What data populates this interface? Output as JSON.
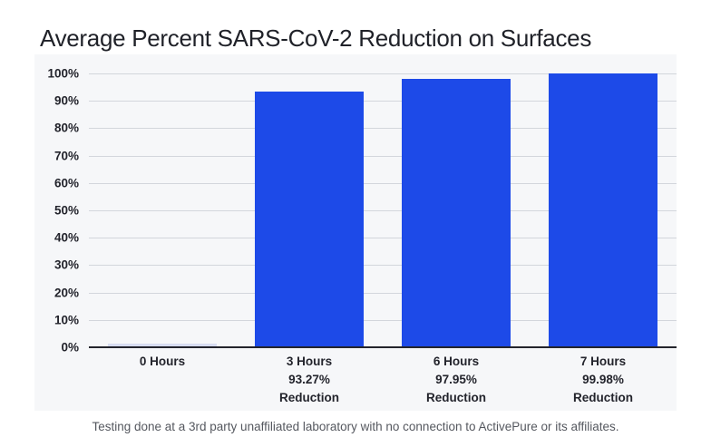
{
  "chart_data": {
    "type": "bar",
    "title": "Average Percent SARS-CoV-2 Reduction on Surfaces",
    "categories": [
      "0 Hours",
      "3 Hours",
      "6 Hours",
      "7 Hours"
    ],
    "category_labels": [
      [
        "0 Hours"
      ],
      [
        "3 Hours",
        "93.27%",
        "Reduction"
      ],
      [
        "6 Hours",
        "97.95%",
        "Reduction"
      ],
      [
        "7 Hours",
        "99.98%",
        "Reduction"
      ]
    ],
    "values": [
      0,
      93.27,
      97.95,
      99.98
    ],
    "xlabel": "",
    "ylabel": "",
    "ylim": [
      0,
      100
    ],
    "grid": "on",
    "legend": "none",
    "yticks": [
      {
        "value": 0,
        "label": "0%"
      },
      {
        "value": 10,
        "label": "10%"
      },
      {
        "value": 20,
        "label": "20%"
      },
      {
        "value": 30,
        "label": "30%"
      },
      {
        "value": 40,
        "label": "40%"
      },
      {
        "value": 50,
        "label": "50%"
      },
      {
        "value": 60,
        "label": "60%"
      },
      {
        "value": 70,
        "label": "70%"
      },
      {
        "value": 80,
        "label": "80%"
      },
      {
        "value": 90,
        "label": "90%"
      },
      {
        "value": 100,
        "label": "100%"
      }
    ],
    "colors": {
      "bar": "#1d4ae8",
      "zero_bar": "#d7dcf1",
      "plot_background": "#f6f7f9",
      "gridline": "#d3d6dc",
      "axis_line": "#23242c",
      "tick_text": "#23242c",
      "title_text": "#1f2128",
      "footnote_text": "#55585f"
    },
    "footnote": "Testing done at a 3rd party unaffiliated laboratory with no connection to ActivePure or its affiliates."
  }
}
